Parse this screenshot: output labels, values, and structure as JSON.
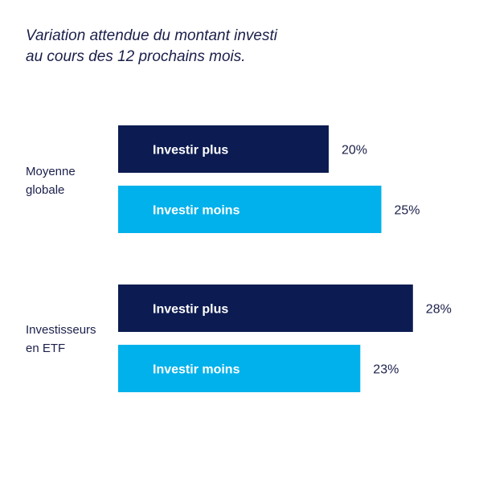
{
  "chart_data": {
    "type": "bar",
    "orientation": "horizontal",
    "title_lines": [
      "Variation attendue du montant investi",
      "au cours des 12 prochains mois."
    ],
    "unit": "%",
    "groups": [
      {
        "label_lines": [
          "Moyenne",
          "globale"
        ],
        "bars": [
          {
            "name": "Investir plus",
            "value": 20,
            "value_label": "20%"
          },
          {
            "name": "Investir moins",
            "value": 25,
            "value_label": "25%"
          }
        ]
      },
      {
        "label_lines": [
          "Investisseurs",
          "en ETF"
        ],
        "bars": [
          {
            "name": "Investir plus",
            "value": 28,
            "value_label": "28%"
          },
          {
            "name": "Investir moins",
            "value": 23,
            "value_label": "23%"
          }
        ]
      }
    ],
    "colors": {
      "Investir plus": "#0c1c52",
      "Investir moins": "#00b1eb"
    },
    "grid": false,
    "legend": "none"
  }
}
